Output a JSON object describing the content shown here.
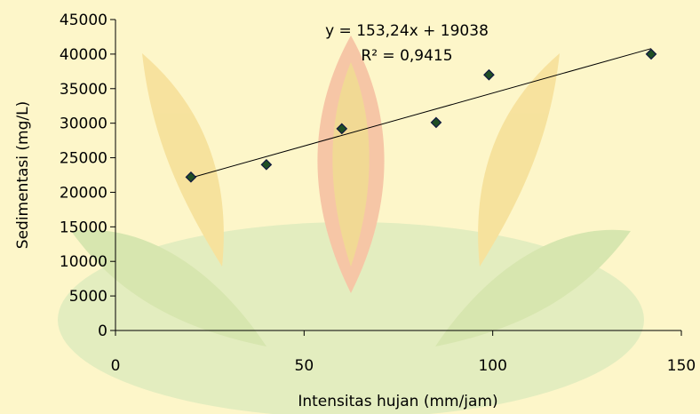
{
  "chart_data": {
    "type": "scatter",
    "title": "",
    "xlabel": "Intensitas hujan (mm/jam)",
    "ylabel": "Sedimentasi (mg/L)",
    "xlim": [
      0,
      150
    ],
    "ylim": [
      0,
      45000
    ],
    "x_ticks": [
      "0",
      "50",
      "100",
      "150"
    ],
    "y_ticks": [
      "0",
      "5000",
      "10000",
      "15000",
      "20000",
      "25000",
      "30000",
      "35000",
      "40000",
      "45000"
    ],
    "x_tick_values": [
      0,
      50,
      100,
      150
    ],
    "y_tick_values": [
      0,
      5000,
      10000,
      15000,
      20000,
      25000,
      30000,
      35000,
      40000,
      45000
    ],
    "series": [
      {
        "x": [
          20,
          40,
          60,
          85,
          99,
          142
        ],
        "y": [
          22200,
          24000,
          29200,
          30100,
          37000,
          40000
        ]
      }
    ],
    "trendline": {
      "slope": 153.24,
      "intercept": 19038,
      "x_range": [
        20,
        142
      ],
      "equation": "y = 153,24x + 19038",
      "r_squared": "R² = 0,9415"
    },
    "grid": false,
    "legend": "none"
  },
  "colors": {
    "background": "#fdf6c9",
    "marker_fill": "#1f4e24",
    "marker_edge": "#101840",
    "line": "#000000",
    "axis": "#000000"
  }
}
